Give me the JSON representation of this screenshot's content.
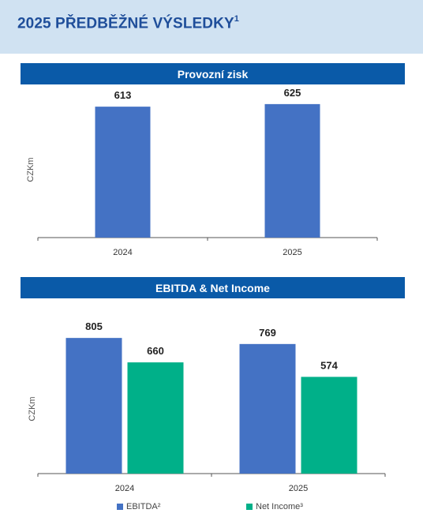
{
  "header": {
    "title": "2025 PŘEDBĚŽNÉ VÝSLEDKY",
    "footnote": "1"
  },
  "chart_data": [
    {
      "type": "bar",
      "title": "Provozní zisk",
      "ylabel": "CZKm",
      "categories": [
        "2024",
        "2025"
      ],
      "series": [
        {
          "values": [
            613,
            625
          ],
          "color": "#4472c4"
        }
      ],
      "ylim": [
        0,
        680
      ]
    },
    {
      "type": "bar",
      "title": "EBITDA & Net Income",
      "ylabel": "CZKm",
      "categories": [
        "2024",
        "2025"
      ],
      "series": [
        {
          "name": "EBITDA²",
          "values": [
            805,
            769
          ],
          "color": "#4472c4"
        },
        {
          "name": "Net Income³",
          "values": [
            660,
            574
          ],
          "color": "#00b089"
        }
      ],
      "ylim": [
        0,
        890
      ],
      "legend": "bottom"
    }
  ]
}
